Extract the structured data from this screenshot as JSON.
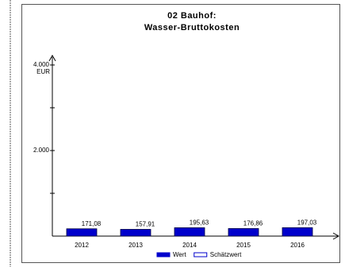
{
  "chart_data": {
    "type": "bar",
    "title": [
      "02 Bauhof:",
      "Wasser-Bruttokosten"
    ],
    "y_unit": "EUR",
    "categories": [
      "2012",
      "2013",
      "2014",
      "2015",
      "2016"
    ],
    "series": [
      {
        "name": "Wert",
        "color": "#0000cc",
        "values": [
          171.08,
          157.91,
          195.63,
          176.86,
          197.03
        ],
        "value_labels": [
          "171,08",
          "157,91",
          "195,63",
          "176,86",
          "197,03"
        ]
      },
      {
        "name": "Schätzwert",
        "color": "#ffffff",
        "values": [
          null,
          null,
          null,
          null,
          null
        ]
      }
    ],
    "ylim": [
      0,
      4000
    ],
    "yticks": [
      {
        "value": 2000,
        "label": "2.000"
      },
      {
        "value": 4000,
        "label": "4.000"
      }
    ],
    "minor_yticks": [
      1000,
      3000
    ]
  }
}
